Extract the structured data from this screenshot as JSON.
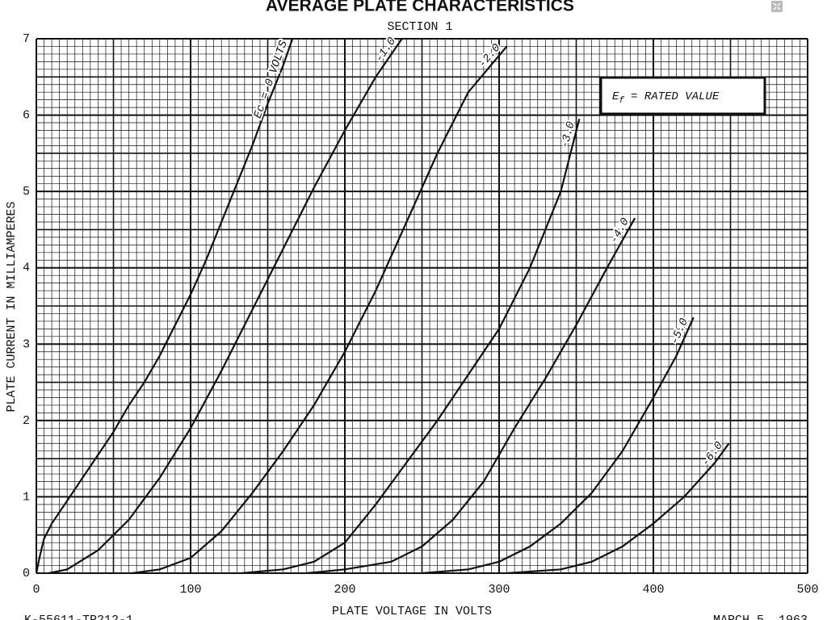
{
  "chart_data": {
    "type": "line",
    "title": "AVERAGE PLATE CHARACTERISTICS",
    "subtitle": "SECTION 1",
    "x_label": "PLATE VOLTAGE IN VOLTS",
    "y_label": "PLATE CURRENT IN MILLIAMPERES",
    "annotation": {
      "symbol": "E",
      "subscript": "f",
      "text": "= RATED VALUE"
    },
    "footnotes": [
      "K-55611-TP212-1",
      "MARCH 5, 1963"
    ],
    "xlim": [
      0,
      500
    ],
    "ylim": [
      0,
      7
    ],
    "xticks": [
      0,
      100,
      200,
      300,
      400,
      500
    ],
    "yticks": [
      0,
      1,
      2,
      3,
      4,
      5,
      6,
      7
    ],
    "grid": true,
    "series": [
      {
        "name": "Ec = 0 VOLTS",
        "color": "#111111",
        "x": [
          0,
          2,
          5,
          10,
          20,
          30,
          40,
          50,
          60,
          70,
          80,
          90,
          100,
          110,
          120,
          130,
          140,
          150,
          160,
          166
        ],
        "values": [
          0,
          0.2,
          0.45,
          0.65,
          0.95,
          1.25,
          1.55,
          1.85,
          2.2,
          2.5,
          2.85,
          3.25,
          3.65,
          4.1,
          4.6,
          5.1,
          5.6,
          6.15,
          6.65,
          7.0
        ]
      },
      {
        "name": "-1.0",
        "color": "#111111",
        "x": [
          8,
          20,
          40,
          60,
          80,
          100,
          120,
          140,
          160,
          180,
          200,
          220,
          237
        ],
        "values": [
          0,
          0.05,
          0.3,
          0.7,
          1.25,
          1.9,
          2.65,
          3.45,
          4.25,
          5.05,
          5.8,
          6.5,
          7.0
        ]
      },
      {
        "name": "-2.0",
        "color": "#111111",
        "x": [
          62,
          80,
          100,
          120,
          140,
          160,
          180,
          200,
          220,
          240,
          260,
          280,
          305
        ],
        "values": [
          0,
          0.05,
          0.2,
          0.55,
          1.05,
          1.6,
          2.2,
          2.9,
          3.7,
          4.6,
          5.5,
          6.3,
          6.9
        ]
      },
      {
        "name": "-3.0",
        "color": "#111111",
        "x": [
          133,
          160,
          180,
          200,
          220,
          240,
          260,
          280,
          300,
          320,
          340,
          352
        ],
        "values": [
          0,
          0.05,
          0.15,
          0.4,
          0.9,
          1.45,
          2.0,
          2.6,
          3.2,
          4.0,
          5.0,
          5.95
        ]
      },
      {
        "name": "-4.0",
        "color": "#111111",
        "x": [
          175,
          200,
          230,
          250,
          270,
          290,
          310,
          330,
          350,
          370,
          388
        ],
        "values": [
          0,
          0.05,
          0.15,
          0.35,
          0.7,
          1.2,
          1.9,
          2.55,
          3.25,
          4.0,
          4.65
        ]
      },
      {
        "name": "-5.0",
        "color": "#111111",
        "x": [
          250,
          280,
          300,
          320,
          340,
          360,
          380,
          400,
          415,
          426
        ],
        "values": [
          0,
          0.05,
          0.15,
          0.35,
          0.65,
          1.05,
          1.6,
          2.3,
          2.85,
          3.35
        ]
      },
      {
        "name": "-6.0",
        "color": "#111111",
        "x": [
          305,
          340,
          360,
          380,
          400,
          420,
          440,
          449
        ],
        "values": [
          0,
          0.05,
          0.15,
          0.35,
          0.65,
          1.0,
          1.45,
          1.7
        ]
      }
    ]
  }
}
